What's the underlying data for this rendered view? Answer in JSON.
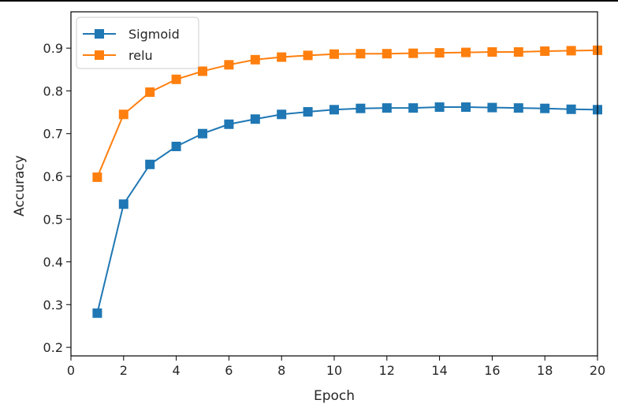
{
  "chart_data": {
    "type": "line",
    "title": "",
    "xlabel": "Epoch",
    "ylabel": "Accuracy",
    "xlim": [
      0,
      20
    ],
    "ylim": [
      0.18,
      0.985
    ],
    "xticks": [
      0,
      2,
      4,
      6,
      8,
      10,
      12,
      14,
      16,
      18,
      20
    ],
    "yticks": [
      0.2,
      0.3,
      0.4,
      0.5,
      0.6,
      0.7,
      0.8,
      0.9
    ],
    "grid": false,
    "legend": "upper-left",
    "x": [
      1,
      2,
      3,
      4,
      5,
      6,
      7,
      8,
      9,
      10,
      11,
      12,
      13,
      14,
      15,
      16,
      17,
      18,
      19,
      20
    ],
    "series": [
      {
        "name": "Sigmoid",
        "color": "#1f77b4",
        "marker": "square",
        "values": [
          0.28,
          0.535,
          0.628,
          0.67,
          0.7,
          0.722,
          0.734,
          0.745,
          0.751,
          0.756,
          0.759,
          0.76,
          0.76,
          0.762,
          0.762,
          0.761,
          0.76,
          0.759,
          0.757,
          0.756
        ]
      },
      {
        "name": "relu",
        "color": "#ff7f0e",
        "marker": "square",
        "values": [
          0.598,
          0.745,
          0.797,
          0.827,
          0.846,
          0.861,
          0.873,
          0.879,
          0.883,
          0.886,
          0.887,
          0.887,
          0.888,
          0.889,
          0.89,
          0.891,
          0.891,
          0.893,
          0.894,
          0.895
        ]
      }
    ]
  }
}
